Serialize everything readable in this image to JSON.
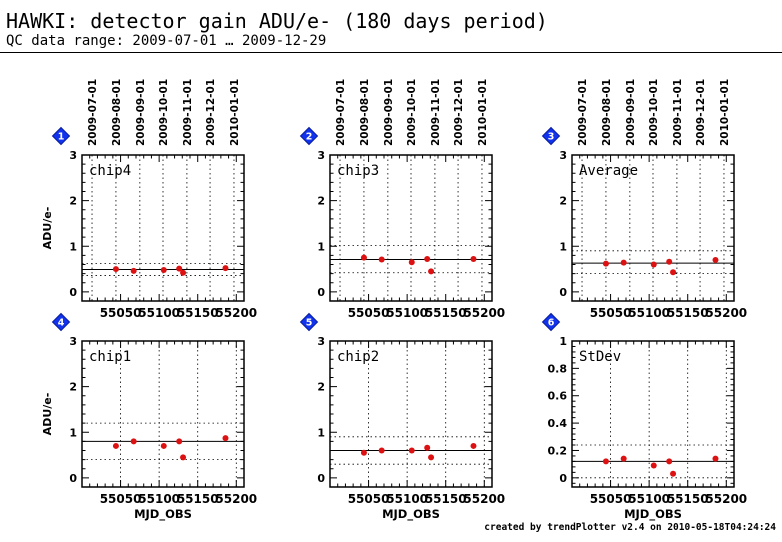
{
  "header": {
    "title": "HAWKI: detector gain ADU/e- (180 days period)",
    "subtitle": "QC data range: 2009-07-01 … 2009-12-29"
  },
  "footer": {
    "text": "created by trendPlotter v2.4 on 2010-05-18T04:24:24"
  },
  "colors": {
    "points": "#dd1111",
    "badge": "#1133ee",
    "axis": "#000000"
  },
  "chart_data": [
    {
      "type": "scatter",
      "badge": "1",
      "label": "chip4",
      "ylabel": "ADU/e-",
      "xlabel": "",
      "xlim": [
        55000,
        55210
      ],
      "ylim": [
        -0.2,
        3
      ],
      "x_ticks": [
        55050,
        55100,
        55150,
        55200
      ],
      "y_ticks": [
        0,
        1,
        2,
        3
      ],
      "date_ticks": [
        "2009-07-01",
        "2009-08-01",
        "2009-09-01",
        "2009-10-01",
        "2009-11-01",
        "2009-12-01",
        "2010-01-01"
      ],
      "date_tick_mjd": [
        55013,
        55044,
        55075,
        55105,
        55136,
        55166,
        55197
      ],
      "x": [
        55044,
        55067,
        55106,
        55126,
        55131,
        55186
      ],
      "y": [
        0.5,
        0.46,
        0.48,
        0.51,
        0.42,
        0.52
      ],
      "ref_line": 0.49,
      "band": [
        0.36,
        0.62
      ]
    },
    {
      "type": "scatter",
      "badge": "2",
      "label": "chip3",
      "ylabel": "",
      "xlabel": "",
      "xlim": [
        55000,
        55210
      ],
      "ylim": [
        -0.2,
        3
      ],
      "x_ticks": [
        55050,
        55100,
        55150,
        55200
      ],
      "y_ticks": [
        0,
        1,
        2,
        3
      ],
      "date_ticks": [
        "2009-07-01",
        "2009-08-01",
        "2009-09-01",
        "2009-10-01",
        "2009-11-01",
        "2009-12-01",
        "2010-01-01"
      ],
      "date_tick_mjd": [
        55013,
        55044,
        55075,
        55105,
        55136,
        55166,
        55197
      ],
      "x": [
        55044,
        55067,
        55106,
        55126,
        55131,
        55186
      ],
      "y": [
        0.75,
        0.71,
        0.65,
        0.72,
        0.45,
        0.72
      ],
      "ref_line": 0.71,
      "band": [
        0.42,
        1.02
      ]
    },
    {
      "type": "scatter",
      "badge": "3",
      "label": "Average",
      "ylabel": "",
      "xlabel": "",
      "xlim": [
        55000,
        55210
      ],
      "ylim": [
        -0.2,
        3
      ],
      "x_ticks": [
        55050,
        55100,
        55150,
        55200
      ],
      "y_ticks": [
        0,
        1,
        2,
        3
      ],
      "date_ticks": [
        "2009-07-01",
        "2009-08-01",
        "2009-09-01",
        "2009-10-01",
        "2009-11-01",
        "2009-12-01",
        "2010-01-01"
      ],
      "date_tick_mjd": [
        55013,
        55044,
        55075,
        55105,
        55136,
        55166,
        55197
      ],
      "x": [
        55044,
        55067,
        55106,
        55126,
        55131,
        55186
      ],
      "y": [
        0.62,
        0.64,
        0.6,
        0.66,
        0.43,
        0.7
      ],
      "ref_line": 0.63,
      "band": [
        0.4,
        0.9
      ]
    },
    {
      "type": "scatter",
      "badge": "4",
      "label": "chip1",
      "ylabel": "ADU/e-",
      "xlabel": "MJD_OBS",
      "xlim": [
        55000,
        55210
      ],
      "ylim": [
        -0.2,
        3
      ],
      "x_ticks": [
        55050,
        55100,
        55150,
        55200
      ],
      "y_ticks": [
        0,
        1,
        2,
        3
      ],
      "x": [
        55044,
        55067,
        55106,
        55126,
        55131,
        55186
      ],
      "y": [
        0.7,
        0.8,
        0.7,
        0.8,
        0.45,
        0.87
      ],
      "ref_line": 0.8,
      "band": [
        0.4,
        1.2
      ]
    },
    {
      "type": "scatter",
      "badge": "5",
      "label": "chip2",
      "ylabel": "",
      "xlabel": "MJD_OBS",
      "xlim": [
        55000,
        55210
      ],
      "ylim": [
        -0.2,
        3
      ],
      "x_ticks": [
        55050,
        55100,
        55150,
        55200
      ],
      "y_ticks": [
        0,
        1,
        2,
        3
      ],
      "x": [
        55044,
        55067,
        55106,
        55126,
        55131,
        55186
      ],
      "y": [
        0.55,
        0.6,
        0.6,
        0.66,
        0.45,
        0.7
      ],
      "ref_line": 0.6,
      "band": [
        0.3,
        0.9
      ]
    },
    {
      "type": "scatter",
      "badge": "6",
      "label": "StDev",
      "ylabel": "",
      "xlabel": "MJD_OBS",
      "xlim": [
        55000,
        55210
      ],
      "ylim": [
        -0.067,
        1
      ],
      "x_ticks": [
        55050,
        55100,
        55150,
        55200
      ],
      "y_ticks": [
        0,
        0.2,
        0.4,
        0.6,
        0.8,
        1
      ],
      "x": [
        55044,
        55067,
        55106,
        55126,
        55131,
        55186
      ],
      "y": [
        0.12,
        0.14,
        0.09,
        0.12,
        0.03,
        0.14
      ],
      "ref_line": 0.12,
      "band": [
        0.0,
        0.24
      ]
    }
  ]
}
